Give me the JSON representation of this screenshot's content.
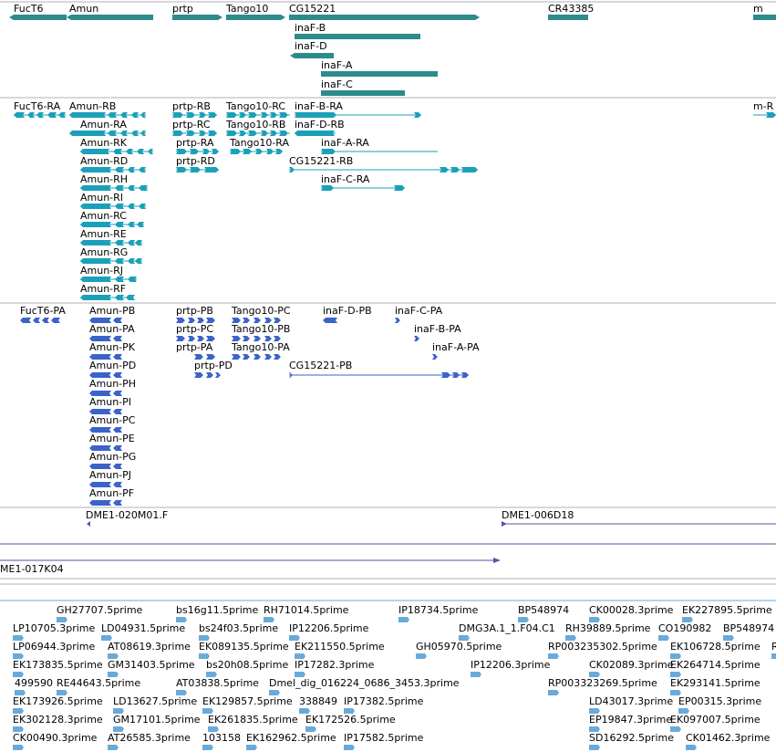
{
  "colors": {
    "gene": "#2e8b8b",
    "rna": "#1aa0b8",
    "cds": "#3b63c9",
    "clone": "#6a4aa8",
    "est": "#6aaad8",
    "separator": "#b0b0b8"
  },
  "gene_track": {
    "genes": [
      "FucT6",
      "Amun",
      "prtp",
      "Tango10",
      "CG15221",
      "CR43385",
      "m",
      "inaF-B",
      "inaF-D",
      "inaF-A",
      "inaF-C"
    ]
  },
  "transcript_track": {
    "labels": [
      "FucT6-RA",
      "Amun-RB",
      "prtp-RB",
      "Tango10-RC",
      "inaF-B-RA",
      "m-R",
      "Amun-RA",
      "prtp-RC",
      "Tango10-RB",
      "inaF-D-RB",
      "Amun-RK",
      "prtp-RA",
      "Tango10-RA",
      "inaF-A-RA",
      "Amun-RD",
      "prtp-RD",
      "CG15221-RB",
      "Amun-RH",
      "inaF-C-RA",
      "Amun-RI",
      "Amun-RC",
      "Amun-RE",
      "Amun-RG",
      "Amun-RJ",
      "Amun-RF"
    ]
  },
  "protein_track": {
    "labels": [
      "FucT6-PA",
      "Amun-PB",
      "prtp-PB",
      "Tango10-PC",
      "inaF-D-PB",
      "inaF-C-PA",
      "Amun-PA",
      "prtp-PC",
      "Tango10-PB",
      "inaF-B-PA",
      "Amun-PK",
      "prtp-PA",
      "Tango10-PA",
      "inaF-A-PA",
      "Amun-PD",
      "prtp-PD",
      "CG15221-PB",
      "Amun-PH",
      "Amun-PI",
      "Amun-PC",
      "Amun-PE",
      "Amun-PG",
      "Amun-PJ",
      "Amun-PF"
    ]
  },
  "clone_track": {
    "labels": [
      "DME1-020M01.F",
      "DME1-006D18",
      "ME1-017K04"
    ]
  },
  "est_track": {
    "labels": [
      "GH27707.5prime",
      "bs16g11.5prime",
      "RH71014.5prime",
      "IP18734.5prime",
      "BP548974",
      "CK00028.3prime",
      "EK227895.5prime",
      "LP10705.3prime",
      "LD04931.5prime",
      "bs24f03.5prime",
      "IP12206.5prime",
      "DMG3A.1_1.F04.C1",
      "RH39889.5prime",
      "CO190982",
      "BP548974",
      "LP06944.3prime",
      "AT08619.3prime",
      "EK089135.5prime",
      "EK211550.5prime",
      "GH05970.5prime",
      "RP003235302.5prime",
      "EK106728.5prime",
      "R",
      "EK173835.5prime",
      "GM31403.5prime",
      "bs20h08.5prime",
      "IP17282.3prime",
      "IP12206.3prime",
      "CK02089.3prime",
      "EK264714.5prime",
      "499590",
      "RE44643.5prime",
      "AT03838.5prime",
      "Dmel_dig_016224_0686_3453.3prime",
      "RP003323269.5prime",
      "EK293141.5prime",
      "EK173926.5prime",
      "LD13627.5prime",
      "EK129857.5prime",
      "338849",
      "IP17382.5prime",
      "LD43017.3prime",
      "EP00315.3prime",
      "EK302128.3prime",
      "GM17101.5prime",
      "EK261835.5prime",
      "EK172526.5prime",
      "EP19847.3prime",
      "EK097007.5prime",
      "CK00490.3prime",
      "AT26585.3prime",
      "103158",
      "EK162962.5prime",
      "IP17582.5prime",
      "SD16292.5prime",
      "CK01462.3prime"
    ]
  }
}
